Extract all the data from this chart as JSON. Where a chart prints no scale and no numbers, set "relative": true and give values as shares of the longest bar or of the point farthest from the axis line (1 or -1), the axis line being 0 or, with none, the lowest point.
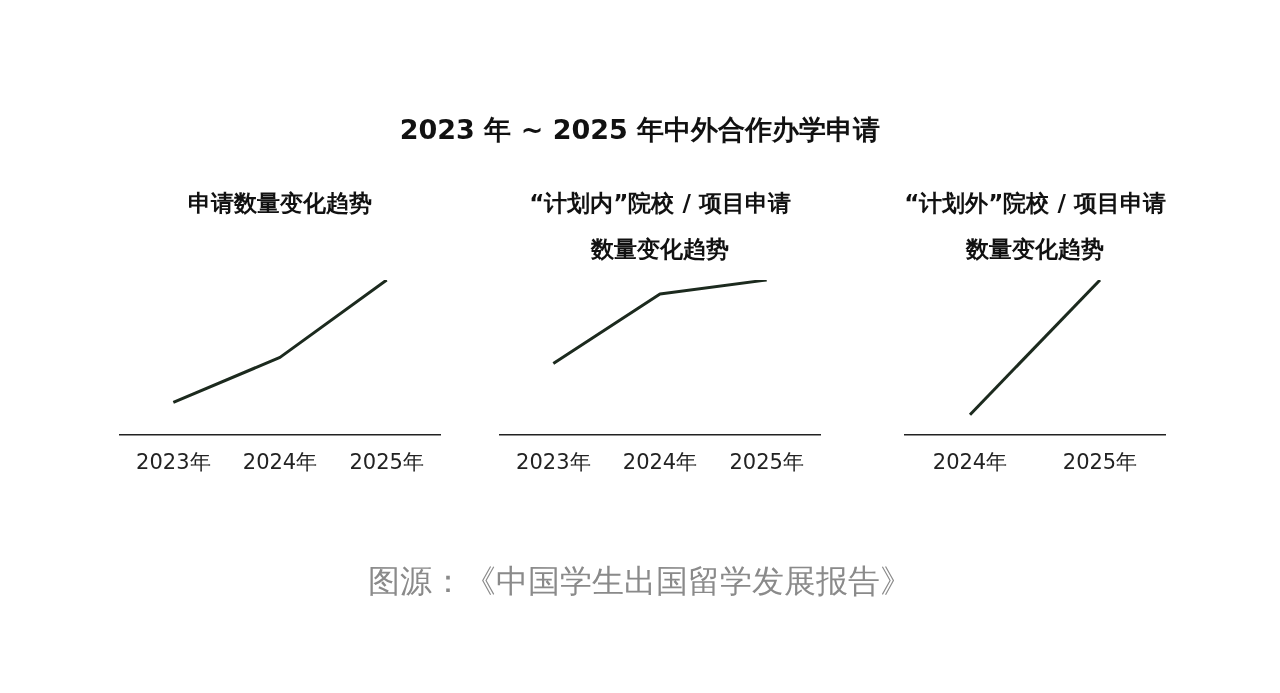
{
  "chart_data": [
    {
      "type": "line",
      "title": "申请数量变化趋势",
      "categories": [
        "2023年",
        "2024年",
        "2025年"
      ],
      "values": [
        0.21,
        0.5,
        1
      ],
      "color": "#1c2a1e",
      "relative": true
    },
    {
      "type": "line",
      "title": "2023 年 ~ 2025 年中外合作办学申请",
      "subtitle": "“计划内”院校 / 项目申请数量变化趋势",
      "categories": [
        "2023年",
        "2024年",
        "2025年"
      ],
      "values": [
        0.46,
        0.91,
        1
      ],
      "color": "#1c2a1e",
      "relative": true,
      "annotations": [
        "图源：《中国学生出国留学发展报告》"
      ]
    },
    {
      "type": "line",
      "title": "“计划外”院校 / 项目申请数量变化趋势",
      "categories": [
        "2024年",
        "2025年"
      ],
      "values": [
        0.13,
        1
      ],
      "color": "#1c2a1e",
      "relative": true
    }
  ]
}
